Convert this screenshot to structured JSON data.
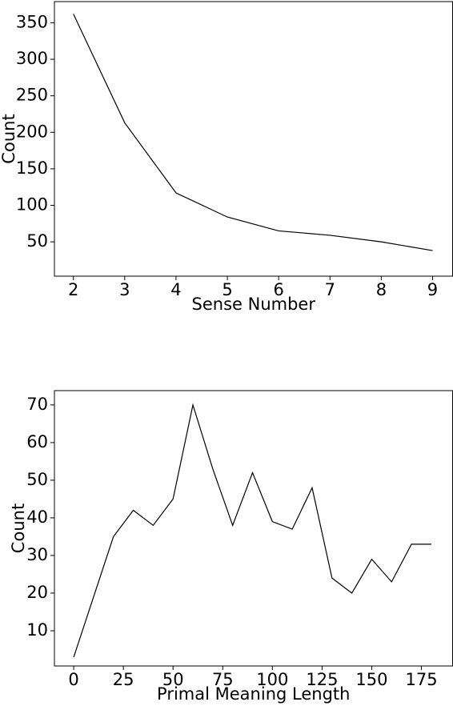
{
  "chart_data": [
    {
      "type": "line",
      "x": [
        2,
        3,
        4,
        5,
        6,
        7,
        8,
        9
      ],
      "series": [
        {
          "color": "#000000",
          "values": [
            362,
            213,
            117,
            84,
            65,
            59,
            50,
            38
          ]
        }
      ],
      "x_label": "Sense Number",
      "y_label": "Count",
      "xlim": [
        1.63,
        9.39
      ],
      "ylim": [
        3,
        379
      ],
      "xticks": [
        2,
        3,
        4,
        5,
        6,
        7,
        8,
        9
      ],
      "yticks": [
        50,
        100,
        150,
        200,
        250,
        300,
        350
      ]
    },
    {
      "type": "line",
      "x": [
        0,
        10,
        20,
        30,
        40,
        50,
        60,
        70,
        80,
        90,
        100,
        110,
        120,
        130,
        140,
        150,
        160,
        170,
        180
      ],
      "series": [
        {
          "color": "#000000",
          "values": [
            3,
            19,
            35,
            42,
            38,
            45,
            70,
            53,
            38,
            52,
            39,
            37,
            48,
            24,
            20,
            29,
            23,
            33,
            33
          ]
        }
      ],
      "x_label": "Primal Meaning Length",
      "y_label": "Count",
      "xlim": [
        -9.7,
        190.7
      ],
      "ylim": [
        0.64,
        73.8
      ],
      "xticks": [
        0,
        25,
        50,
        75,
        100,
        125,
        150,
        175
      ],
      "yticks": [
        10,
        20,
        30,
        40,
        50,
        60,
        70
      ]
    }
  ]
}
